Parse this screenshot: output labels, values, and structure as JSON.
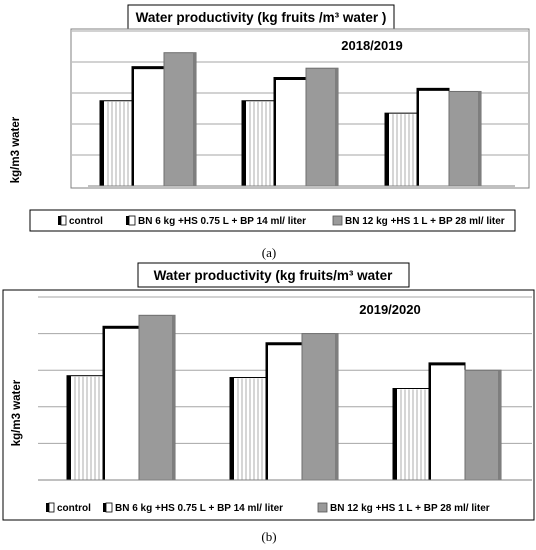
{
  "colors": {
    "control": "#000000",
    "white_bar": "#ffffff",
    "grey_bar": "#9a9a9a",
    "gridline": "#a6a6a6",
    "frame": "#808080"
  },
  "chart_data": [
    {
      "type": "bar",
      "title": "Water productivity (kg fruits /m³ water )",
      "annotation": "2018/2019",
      "ylabel": "kg/m3 water",
      "caption": "(a)",
      "categories": [
        "",
        "",
        ""
      ],
      "ylim": [
        0,
        5
      ],
      "grid": true,
      "legend_position": "bottom",
      "series": [
        {
          "name": "control",
          "values": [
            2.75,
            2.75,
            2.35
          ]
        },
        {
          "name": "BN 6 kg +HS 0.75 L + BP 14 ml/ liter",
          "values": [
            3.85,
            3.5,
            3.15
          ]
        },
        {
          "name": "BN 12 kg +HS 1 L + BP 28 ml/ liter",
          "values": [
            4.3,
            3.8,
            3.05
          ]
        }
      ]
    },
    {
      "type": "bar",
      "title": "Water productivity (kg fruits/m³ water",
      "annotation": "2019/2020",
      "ylabel": "kg/m3 water",
      "caption": "(b)",
      "categories": [
        "",
        "",
        ""
      ],
      "ylim": [
        0,
        5
      ],
      "grid": true,
      "legend_position": "bottom",
      "series": [
        {
          "name": "control",
          "values": [
            2.85,
            2.8,
            2.5
          ]
        },
        {
          "name": "BN 6 kg +HS 0.75 L + BP 14 ml/ liter",
          "values": [
            4.2,
            3.75,
            3.2
          ]
        },
        {
          "name": "BN 12 kg +HS 1 L + BP 28 ml/ liter",
          "values": [
            4.5,
            4.0,
            3.0
          ]
        }
      ]
    }
  ]
}
